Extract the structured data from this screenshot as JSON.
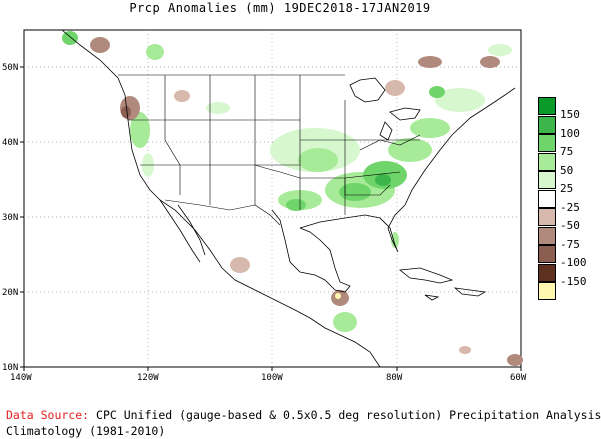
{
  "title": "Prcp Anomalies (mm) 19DEC2018-17JAN2019",
  "map": {
    "lon_range": [
      -140,
      -60
    ],
    "lat_range": [
      10,
      55
    ],
    "lon_ticks": [
      "140W",
      "120W",
      "100W",
      "80W",
      "60W"
    ],
    "lat_ticks": [
      "50N",
      "40N",
      "30N",
      "20N",
      "10N"
    ]
  },
  "legend": {
    "entries": [
      {
        "label": "150",
        "color": "#0a9a2a"
      },
      {
        "label": "100",
        "color": "#3cb54a"
      },
      {
        "label": "75",
        "color": "#6fd46a"
      },
      {
        "label": "50",
        "color": "#a7ea98"
      },
      {
        "label": "25",
        "color": "#d7f7cf"
      },
      {
        "label": "-25",
        "color": "#ffffff"
      },
      {
        "label": "-50",
        "color": "#d6b8ac"
      },
      {
        "label": "-75",
        "color": "#b08a7c"
      },
      {
        "label": "-100",
        "color": "#8a5e50"
      },
      {
        "label": "-150",
        "color": "#5e3020"
      },
      {
        "label": "",
        "color": "#fff7b0"
      }
    ]
  },
  "footer": {
    "source_label": "Data Source:",
    "source_text": " CPC Unified (gauge-based & 0.5x0.5 deg resolution) Precipitation Analysis",
    "climatology": "Climatology (1981-2010)"
  }
}
